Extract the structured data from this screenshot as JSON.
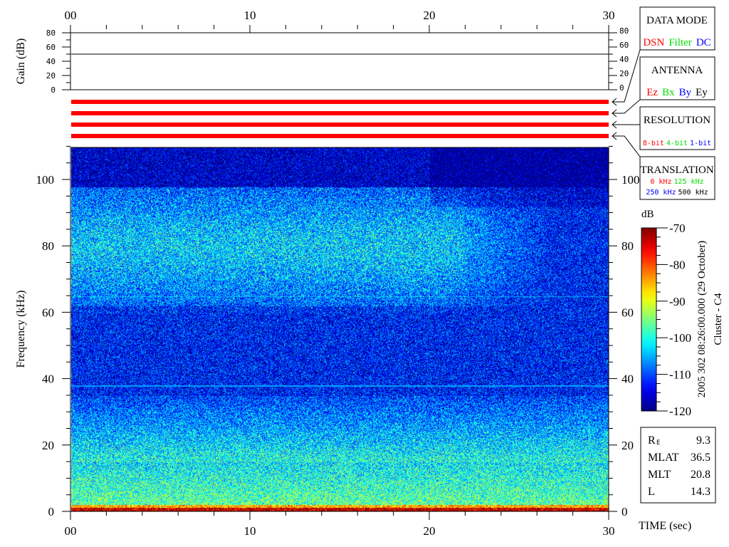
{
  "chart_data": {
    "type": "heatmap",
    "time_axis": {
      "label": "TIME (sec)",
      "range": [
        0,
        30
      ],
      "tick_labels": [
        "00",
        "10",
        "20",
        "30"
      ]
    },
    "gain_panel": {
      "ylabel": "Gain (dB)",
      "ylim": [
        0,
        80
      ],
      "tick_labels": [
        "0",
        "20",
        "40",
        "60",
        "80"
      ],
      "gain_value": 50
    },
    "frequency_axis": {
      "ylabel": "Frequency (kHz)",
      "ylim": [
        0,
        110
      ],
      "tick_labels": [
        "0",
        "20",
        "40",
        "60",
        "80",
        "100"
      ]
    },
    "colorbar": {
      "label": "dB",
      "range": [
        -120,
        -70
      ],
      "tick_labels": [
        "-70",
        "-80",
        "-90",
        "-100",
        "-110",
        "-120"
      ],
      "colormap": "jet"
    },
    "horizontal_lines_khz": [
      65,
      38
    ],
    "title_vertical": "2005 302 08:26:00.000 (29 October)",
    "spacecraft": "Cluster - C4",
    "indicator_bar_color": "#ff0000"
  },
  "legend_boxes": {
    "data_mode": {
      "title": "DATA MODE",
      "options": [
        {
          "text": "DSN",
          "color": "#ff0000"
        },
        {
          "text": "Filter",
          "color": "#00e000"
        },
        {
          "text": "DC",
          "color": "#0000ff"
        }
      ]
    },
    "antenna": {
      "title": "ANTENNA",
      "options": [
        {
          "text": "Ez",
          "color": "#ff0000"
        },
        {
          "text": "Bx",
          "color": "#00e000"
        },
        {
          "text": "By",
          "color": "#0000ff"
        },
        {
          "text": "Ey",
          "color": "#000000"
        }
      ]
    },
    "resolution": {
      "title": "RESOLUTION",
      "options": [
        {
          "text": "8-bit",
          "color": "#ff0000"
        },
        {
          "text": "4-bit",
          "color": "#00e000"
        },
        {
          "text": "1-bit",
          "color": "#0000ff"
        }
      ]
    },
    "translation": {
      "title": "TRANSLATION",
      "options": [
        {
          "text": "0 kHz",
          "color": "#ff0000"
        },
        {
          "text": "125 kHz",
          "color": "#00e000"
        },
        {
          "text": "250 kHz",
          "color": "#0000ff"
        },
        {
          "text": "500 kHz",
          "color": "#000000"
        }
      ]
    }
  },
  "orbit_info": [
    {
      "label": "R",
      "sub": "E",
      "value": "9.3"
    },
    {
      "label": "MLAT",
      "sub": "",
      "value": "36.5"
    },
    {
      "label": "MLT",
      "sub": "",
      "value": "20.8"
    },
    {
      "label": "L",
      "sub": "",
      "value": "14.3"
    }
  ]
}
